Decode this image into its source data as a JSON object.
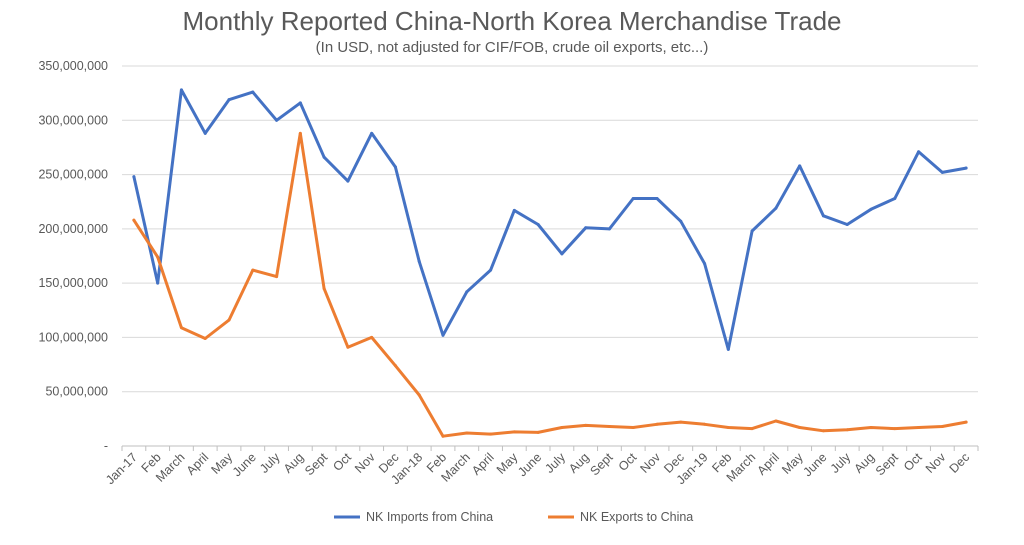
{
  "chart_data": {
    "type": "line",
    "title": "Monthly Reported China-North Korea Merchandise Trade",
    "subtitle": "(In USD, not adjusted for CIF/FOB, crude oil exports, etc...)",
    "categories": [
      "Jan-17",
      "Feb",
      "March",
      "April",
      "May",
      "June",
      "July",
      "Aug",
      "Sept",
      "Oct",
      "Nov",
      "Dec",
      "Jan-18",
      "Feb",
      "March",
      "April",
      "May",
      "June",
      "July",
      "Aug",
      "Sept",
      "Oct",
      "Nov",
      "Dec",
      "Jan-19",
      "Feb",
      "March",
      "April",
      "May",
      "June",
      "July",
      "Aug",
      "Sept",
      "Oct",
      "Nov",
      "Dec"
    ],
    "ylim": [
      0,
      350000000
    ],
    "yticks": [
      0,
      50000000,
      100000000,
      150000000,
      200000000,
      250000000,
      300000000,
      350000000
    ],
    "ytick_labels": [
      "-",
      "50,000,000",
      "100,000,000",
      "150,000,000",
      "200,000,000",
      "250,000,000",
      "300,000,000",
      "350,000,000"
    ],
    "grid": true,
    "legend_position": "bottom",
    "series": [
      {
        "name": "NK Imports from China",
        "color": "#4472c4",
        "values": [
          248000000,
          150000000,
          328000000,
          288000000,
          319000000,
          326000000,
          300000000,
          316000000,
          266000000,
          244000000,
          288000000,
          257000000,
          170000000,
          102000000,
          142000000,
          162000000,
          217000000,
          204000000,
          177000000,
          201000000,
          200000000,
          228000000,
          228000000,
          207000000,
          168000000,
          89000000,
          198000000,
          219000000,
          258000000,
          212000000,
          204000000,
          218000000,
          228000000,
          271000000,
          252000000,
          256000000
        ]
      },
      {
        "name": "NK Exports to China",
        "color": "#ed7d31",
        "values": [
          208000000,
          174000000,
          109000000,
          99000000,
          116000000,
          162000000,
          156000000,
          288000000,
          145000000,
          91000000,
          100000000,
          74000000,
          47000000,
          9000000,
          12000000,
          11000000,
          13000000,
          12500000,
          17000000,
          19000000,
          18000000,
          17000000,
          20000000,
          22000000,
          20000000,
          17000000,
          16000000,
          23000000,
          17000000,
          14000000,
          15000000,
          17000000,
          16000000,
          17000000,
          18000000,
          22000000
        ]
      }
    ]
  }
}
